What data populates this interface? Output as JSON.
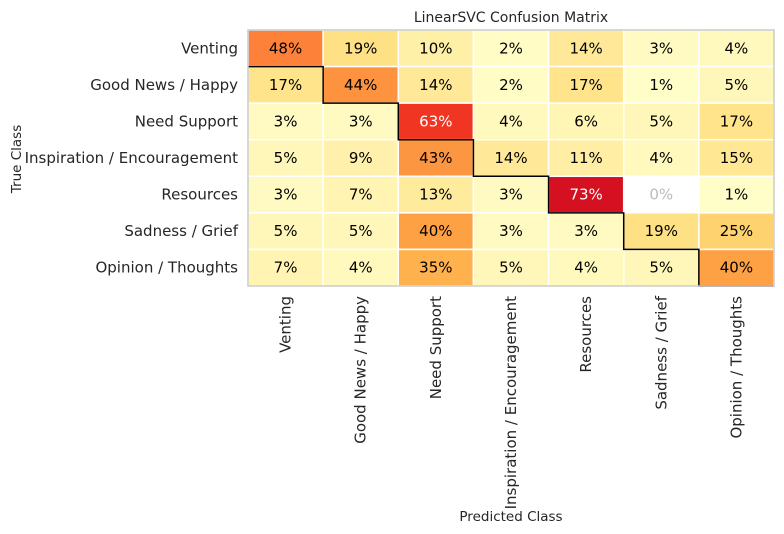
{
  "chart_data": {
    "type": "heatmap",
    "title": "LinearSVC Confusion Matrix",
    "xlabel": "Predicted Class",
    "ylabel": "True Class",
    "rows": [
      "Venting",
      "Good News / Happy",
      "Need Support",
      "Inspiration / Encouragement",
      "Resources",
      "Sadness / Grief",
      "Opinion / Thoughts"
    ],
    "columns": [
      "Venting",
      "Good News / Happy",
      "Need Support",
      "Inspiration / Encouragement",
      "Resources",
      "Sadness / Grief",
      "Opinion / Thoughts"
    ],
    "values": [
      [
        48,
        19,
        10,
        2,
        14,
        3,
        4
      ],
      [
        17,
        44,
        14,
        2,
        17,
        1,
        5
      ],
      [
        3,
        3,
        63,
        4,
        6,
        5,
        17
      ],
      [
        5,
        9,
        43,
        14,
        11,
        4,
        15
      ],
      [
        3,
        7,
        13,
        3,
        73,
        0,
        1
      ],
      [
        5,
        5,
        40,
        3,
        3,
        19,
        25
      ],
      [
        7,
        4,
        35,
        5,
        4,
        5,
        40
      ]
    ],
    "value_suffix": "%",
    "colormap": "YlOrRd",
    "vmin": 0,
    "vmax": 75,
    "zero_cell_color": "#ffffff",
    "diagonal_outline": true,
    "grid_color": "#ffffff"
  }
}
